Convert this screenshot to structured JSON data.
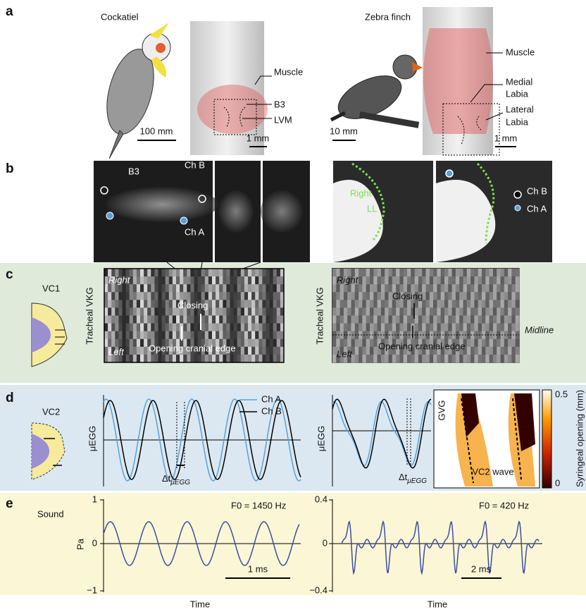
{
  "panel_a": {
    "label": "a",
    "cockatiel": {
      "name": "Cockatiel",
      "muscle": "Muscle",
      "b3": "B3",
      "lvm": "LVM",
      "scale_bird": "100 mm",
      "scale_syrinx": "1 mm"
    },
    "zebra_finch": {
      "name": "Zebra finch",
      "muscle": "Muscle",
      "medial": "Medial",
      "medial_2": "Labia",
      "lateral": "Lateral",
      "lateral_2": "Labia",
      "scale_bird": "10 mm",
      "scale_syrinx": "1 mm"
    }
  },
  "panel_b": {
    "label": "b",
    "left": {
      "b3": "B3",
      "ch_b": "Ch B",
      "ch_a": "Ch A"
    },
    "right": {
      "right": "Right",
      "ll": "LL",
      "ch_b": "Ch B",
      "ch_a": "Ch A"
    }
  },
  "panel_c": {
    "label": "c",
    "mode": "VC1",
    "left": {
      "axis": "Tracheal VKG",
      "top": "Right",
      "bottom": "Left",
      "closing": "Closing",
      "opening": "Opening cranial edge"
    },
    "right": {
      "axis": "Tracheal VKG",
      "top": "Right",
      "bottom": "Left",
      "closing": "Closing",
      "opening": "Opening cranial edge",
      "midline": "Midline"
    }
  },
  "panel_d": {
    "label": "d",
    "mode": "VC2",
    "left": {
      "axis": "μEGG",
      "legend": [
        "Ch A",
        "Ch B"
      ],
      "delta": "Δt",
      "delta_sub": "μEGG"
    },
    "right": {
      "axis": "μEGG",
      "delta": "Δt",
      "delta_sub": "μEGG",
      "inset_axis": "GVG",
      "inset_label": "VC2 wave",
      "colorbar_label": "Syringeal opening (mm)",
      "colorbar_max": "0.5",
      "colorbar_min": "0"
    }
  },
  "panel_e": {
    "label": "e",
    "left": {
      "name": "Sound",
      "axis": "Pa",
      "yticks": [
        "1",
        "0",
        "−1"
      ],
      "f0": "F0 = 1450 Hz",
      "scale": "1 ms",
      "xlabel": "Time"
    },
    "right": {
      "yticks": [
        "0.4",
        "0",
        "−0.4"
      ],
      "f0": "F0 = 420 Hz",
      "scale": "2 ms",
      "xlabel": "Time"
    }
  }
}
